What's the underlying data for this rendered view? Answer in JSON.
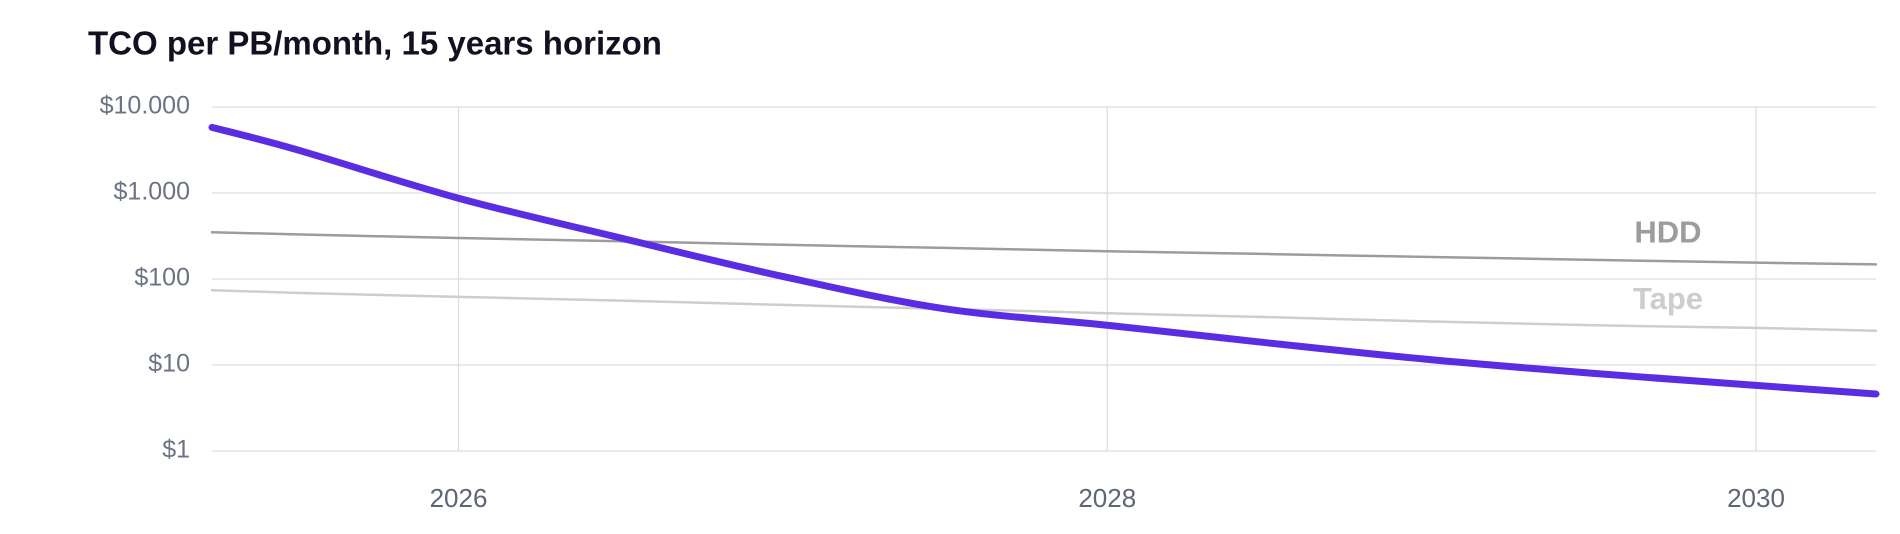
{
  "chart_data": {
    "type": "line",
    "title": "TCO per PB/month, 15 years horizon",
    "x": [
      2025.24,
      2025.5,
      2026,
      2026.5,
      2027,
      2027.5,
      2028,
      2028.5,
      2029,
      2029.5,
      2030,
      2030.37
    ],
    "series": [
      {
        "color": "#5a2de3",
        "values": [
          5800,
          3200,
          870,
          300,
          107,
          45,
          29,
          18,
          11.5,
          8,
          5.8,
          4.6
        ]
      },
      {
        "name": "HDD",
        "color": "#9c9c9c",
        "values": [
          350,
          330,
          300,
          275,
          250,
          230,
          210,
          195,
          180,
          167,
          155,
          148
        ]
      },
      {
        "name": "Tape",
        "color": "#cdcdcd",
        "values": [
          74,
          69,
          62,
          56,
          50,
          45,
          40,
          36,
          32,
          29,
          27,
          25
        ]
      }
    ],
    "xlim": [
      2025.24,
      2030.37
    ],
    "xticks": [
      2026,
      2028,
      2030
    ],
    "ylim": [
      1,
      10000
    ],
    "log_scale_y": true,
    "yticks": [
      {
        "value": 10000,
        "label": "$10.000"
      },
      {
        "value": 1000,
        "label": "$1.000"
      },
      {
        "value": 100,
        "label": "$100"
      },
      {
        "value": 10,
        "label": "$10"
      },
      {
        "value": 1,
        "label": "$1"
      }
    ],
    "grid": true
  }
}
